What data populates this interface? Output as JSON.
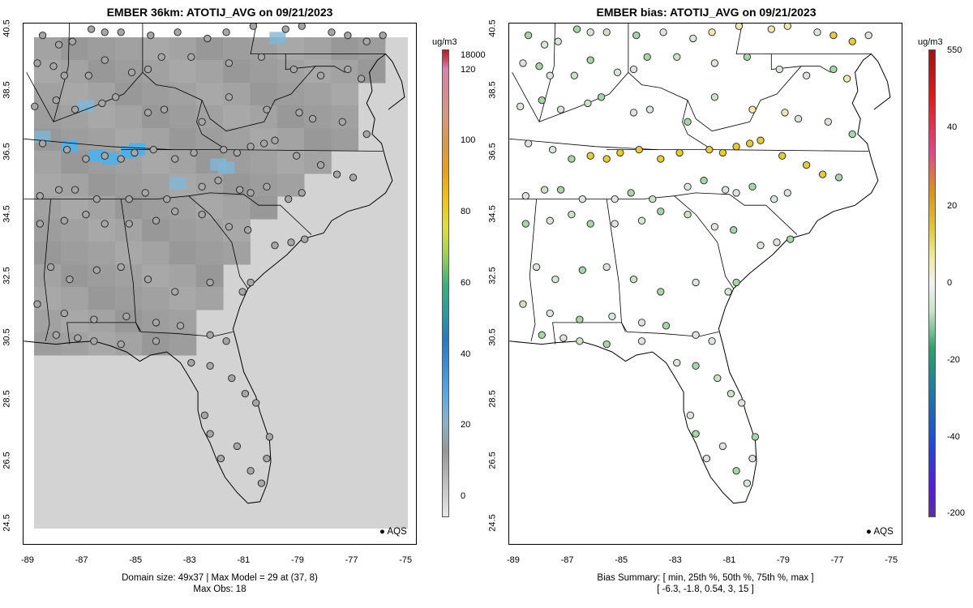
{
  "left_panel": {
    "title": "EMBER 36km: ATOTIJ_AVG on 09/21/2023",
    "footer_line1": "Domain size: 49x37 | Max Model = 29 at (37, 8)",
    "footer_line2": "Max Obs: 18",
    "legend_label": "AQS",
    "colorbar_unit": "ug/m3",
    "colorbar_labels": [
      "18000",
      "120",
      "100",
      "80",
      "60",
      "40",
      "20",
      "0"
    ]
  },
  "right_panel": {
    "title": "EMBER bias: ATOTIJ_AVG on 09/21/2023",
    "footer_line1": "Bias Summary: [ min, 25th %, 50th %, 75th %, max ]",
    "footer_line2": "[ -6.3,   -1.8,   0.54,   3,   15 ]",
    "legend_label": "AQS",
    "colorbar_unit": "ug/m3",
    "colorbar_labels": [
      "550",
      "40",
      "20",
      "0",
      "-20",
      "-40",
      "-200"
    ]
  },
  "x_ticks": [
    "-89",
    "-87",
    "-85",
    "-83",
    "-81",
    "-79",
    "-77",
    "-75"
  ],
  "y_ticks": [
    "40.5",
    "38.5",
    "36.5",
    "34.5",
    "32.5",
    "30.5",
    "28.5",
    "26.5",
    "24.5"
  ],
  "colors": {
    "model_background": "#d3d3d3",
    "model_high": "#9a9a9a",
    "model_hotspot": "#56aee3",
    "marker_fill_left": "#a6a6a6",
    "bias_neutral": "#dde4dd",
    "bias_positive": "#e3cc3c",
    "bias_negative": "#a9d3a8"
  },
  "bias_summary": {
    "min": -6.3,
    "p25": -1.8,
    "p50": 0.54,
    "p75": 3,
    "max": 15
  }
}
